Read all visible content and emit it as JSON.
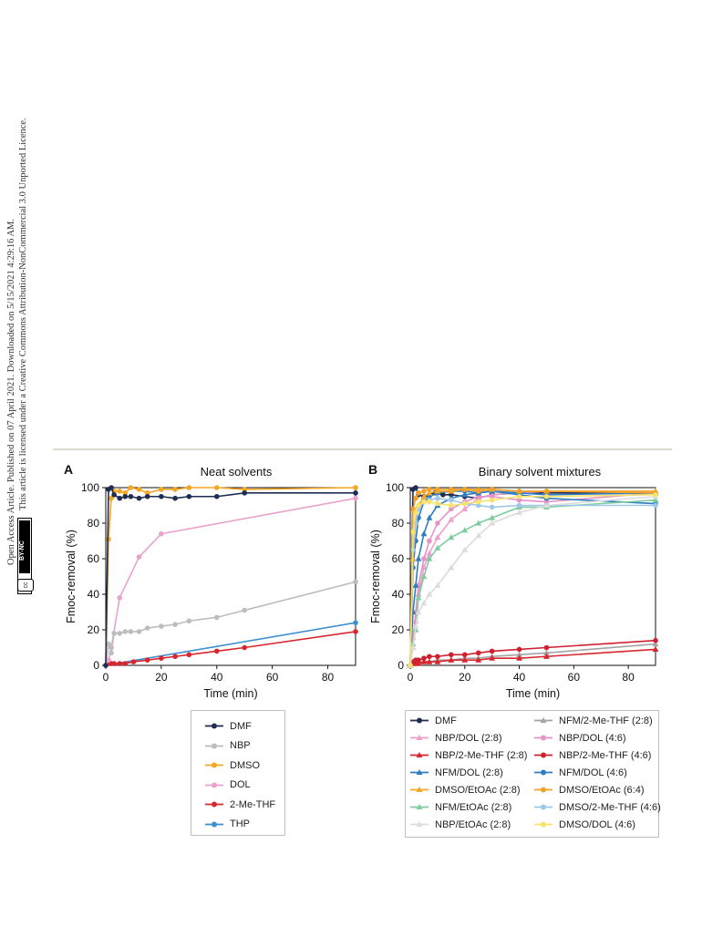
{
  "sidebar": {
    "line1": "Open Access Article. Published on 07 April 2021. Downloaded on 5/15/2021 4:29:16 AM.",
    "line2": "This article is licensed under a Creative Commons Attribution-NonCommercial 3.0 Unported Licence.",
    "badge_cc": "cc",
    "badge_text": "BY-NC"
  },
  "colors": {
    "DMF": "#1f2d52",
    "NBP": "#bdbdbd",
    "DMSO": "#f5a623",
    "DOL": "#e8a2cc",
    "2-Me-THF": "#d7262e",
    "THP": "#3f8fce",
    "NFM_2MeTHF_28": "#a3a3a3",
    "NBP_DOL_28": "#ee9fcb",
    "NBP_DOL_46": "#e493c6",
    "NBP_2MeTHF_28": "#d7262e",
    "NBP_2MeTHF_46": "#cf2030",
    "NFM_DOL_28": "#2f7dc0",
    "NFM_DOL_46": "#2f7dc0",
    "DMSO_EtOAc_28": "#f5a623",
    "DMSO_EtOAc_64": "#f2a12a",
    "NFM_EtOAc_28": "#7fcca0",
    "DMSO_2MeTHF_46": "#9ec7ea",
    "NBP_EtOAc_28": "#dcdcdc",
    "DMSO_DOL_46": "#f5e36b"
  },
  "chart_data": [
    {
      "panel": "A",
      "type": "line",
      "title": "Neat solvents",
      "xlabel": "Time (min)",
      "ylabel": "Fmoc-removal (%)",
      "xlim": [
        0,
        90
      ],
      "ylim": [
        0,
        100
      ],
      "xticks": [
        0,
        20,
        40,
        60,
        80
      ],
      "yticks": [
        0,
        20,
        40,
        60,
        80,
        100
      ],
      "grid": false,
      "legend_position": "below",
      "series": [
        {
          "name": "DMF",
          "color_key": "DMF",
          "marker": "circle",
          "x": [
            0,
            1,
            2,
            3,
            5,
            7,
            9,
            12,
            15,
            20,
            25,
            30,
            40,
            50,
            90
          ],
          "y": [
            0,
            99,
            100,
            96,
            94,
            95,
            95,
            94,
            95,
            95,
            94,
            95,
            95,
            97,
            97
          ]
        },
        {
          "name": "NBP",
          "color_key": "NBP",
          "marker": "circle",
          "x": [
            0,
            1,
            2,
            3,
            5,
            7,
            9,
            12,
            15,
            20,
            25,
            30,
            40,
            50,
            90
          ],
          "y": [
            0,
            12,
            7,
            18,
            18,
            19,
            19,
            19,
            21,
            22,
            23,
            25,
            27,
            31,
            47
          ]
        },
        {
          "name": "DMSO",
          "color_key": "DMSO",
          "marker": "circle",
          "x": [
            0,
            1,
            2,
            3,
            5,
            7,
            9,
            12,
            15,
            20,
            25,
            30,
            40,
            50,
            90
          ],
          "y": [
            0,
            71,
            94,
            98,
            98,
            97,
            100,
            99,
            97,
            99,
            99,
            100,
            100,
            99,
            100
          ]
        },
        {
          "name": "DOL",
          "color_key": "DOL",
          "marker": "circle",
          "x": [
            0,
            1,
            2,
            5,
            12,
            20,
            90
          ],
          "y": [
            0,
            3,
            10,
            38,
            61,
            74,
            94
          ]
        },
        {
          "name": "2-Me-THF",
          "color_key": "2-Me-THF",
          "marker": "circle",
          "x": [
            0,
            1,
            2,
            3,
            5,
            7,
            10,
            15,
            20,
            25,
            30,
            40,
            50,
            90
          ],
          "y": [
            0,
            1,
            1,
            1,
            1,
            1,
            2,
            3,
            4,
            5,
            6,
            8,
            10,
            19
          ]
        },
        {
          "name": "THP",
          "color_key": "THP",
          "marker": "circle",
          "x": [
            0,
            90
          ],
          "y": [
            0,
            24
          ]
        }
      ]
    },
    {
      "panel": "B",
      "type": "line",
      "title": "Binary solvent mixtures",
      "xlabel": "Time (min)",
      "ylabel": "Fmoc-removal (%)",
      "xlim": [
        0,
        90
      ],
      "ylim": [
        0,
        100
      ],
      "xticks": [
        0,
        20,
        40,
        60,
        80
      ],
      "yticks": [
        0,
        20,
        40,
        60,
        80,
        100
      ],
      "grid": false,
      "legend_position": "below",
      "series": [
        {
          "name": "DMF",
          "color_key": "DMF",
          "marker": "circle",
          "x": [
            0,
            1,
            2,
            3,
            5,
            7,
            9,
            12,
            15,
            20,
            25,
            30,
            40,
            50,
            90
          ],
          "y": [
            0,
            99,
            100,
            96,
            95,
            96,
            97,
            96,
            96,
            95,
            94,
            96,
            97,
            97,
            97
          ]
        },
        {
          "name": "NFM/2-Me-THF (2:8)",
          "color_key": "NFM_2MeTHF_28",
          "marker": "triangle",
          "x": [
            0,
            1,
            2,
            3,
            5,
            7,
            10,
            15,
            20,
            25,
            30,
            40,
            50,
            90
          ],
          "y": [
            0,
            1,
            1,
            2,
            2,
            2,
            3,
            3,
            4,
            4,
            5,
            6,
            7,
            12
          ]
        },
        {
          "name": "NBP/DOL (2:8)",
          "color_key": "NBP_DOL_28",
          "marker": "triangle",
          "x": [
            0,
            1,
            2,
            3,
            5,
            7,
            10,
            15,
            20,
            25,
            30,
            40,
            50,
            90
          ],
          "y": [
            0,
            10,
            25,
            40,
            55,
            63,
            72,
            82,
            88,
            94,
            96,
            97,
            98,
            98
          ]
        },
        {
          "name": "NBP/DOL (4:6)",
          "color_key": "NBP_DOL_46",
          "marker": "circle",
          "x": [
            0,
            1,
            2,
            3,
            5,
            7,
            10,
            15,
            20,
            25,
            30,
            40,
            50,
            90
          ],
          "y": [
            0,
            15,
            30,
            45,
            60,
            70,
            80,
            88,
            92,
            95,
            95,
            93,
            92,
            97
          ]
        },
        {
          "name": "NBP/2-Me-THF (2:8)",
          "color_key": "NBP_2MeTHF_28",
          "marker": "triangle",
          "x": [
            0,
            1,
            2,
            3,
            5,
            7,
            10,
            15,
            20,
            25,
            30,
            40,
            50,
            90
          ],
          "y": [
            0,
            1,
            1,
            1,
            2,
            2,
            2,
            3,
            3,
            3,
            4,
            4,
            5,
            9
          ]
        },
        {
          "name": "NBP/2-Me-THF (4:6)",
          "color_key": "NBP_2MeTHF_46",
          "marker": "circle",
          "x": [
            0,
            1,
            2,
            3,
            5,
            7,
            10,
            15,
            20,
            25,
            30,
            40,
            50,
            90
          ],
          "y": [
            0,
            2,
            3,
            3,
            4,
            5,
            5,
            6,
            6,
            7,
            8,
            9,
            10,
            14
          ]
        },
        {
          "name": "NFM/DOL (2:8)",
          "color_key": "NFM_DOL_28",
          "marker": "triangle",
          "x": [
            0,
            1,
            2,
            3,
            5,
            7,
            10,
            15,
            20,
            25,
            30,
            40,
            50,
            90
          ],
          "y": [
            0,
            30,
            45,
            60,
            74,
            83,
            90,
            94,
            96,
            97,
            98,
            97,
            96,
            97
          ]
        },
        {
          "name": "NFM/DOL (4:6)",
          "color_key": "NFM_DOL_46",
          "marker": "circle",
          "x": [
            0,
            1,
            2,
            3,
            5,
            7,
            10,
            15,
            20,
            25,
            30,
            40,
            50,
            90
          ],
          "y": [
            0,
            55,
            70,
            83,
            92,
            95,
            97,
            98,
            98,
            97,
            98,
            96,
            94,
            91
          ]
        },
        {
          "name": "DMSO/EtOAc (2:8)",
          "color_key": "DMSO_EtOAc_28",
          "marker": "triangle",
          "x": [
            0,
            1,
            2,
            3,
            5,
            7,
            10,
            15,
            20,
            25,
            30,
            40,
            50,
            90
          ],
          "y": [
            0,
            60,
            80,
            90,
            95,
            97,
            98,
            98,
            99,
            99,
            99,
            98,
            98,
            98
          ]
        },
        {
          "name": "DMSO/EtOAc (6:4)",
          "color_key": "DMSO_EtOAc_64",
          "marker": "circle",
          "x": [
            0,
            1,
            2,
            3,
            5,
            7,
            10,
            15,
            20,
            25,
            30,
            40,
            50,
            90
          ],
          "y": [
            0,
            88,
            94,
            97,
            98,
            99,
            99,
            99,
            99,
            98,
            99,
            98,
            98,
            97
          ]
        },
        {
          "name": "NFM/EtOAc (2:8)",
          "color_key": "NFM_EtOAc_28",
          "marker": "triangle",
          "x": [
            0,
            1,
            2,
            3,
            5,
            7,
            10,
            15,
            20,
            25,
            30,
            40,
            50,
            90
          ],
          "y": [
            0,
            12,
            20,
            38,
            50,
            60,
            66,
            72,
            76,
            80,
            83,
            89,
            89,
            93
          ]
        },
        {
          "name": "DMSO/2-Me-THF (4:6)",
          "color_key": "DMSO_2MeTHF_46",
          "marker": "circle",
          "x": [
            0,
            1,
            2,
            3,
            5,
            7,
            10,
            15,
            20,
            25,
            30,
            40,
            50,
            90
          ],
          "y": [
            0,
            65,
            80,
            88,
            92,
            93,
            94,
            93,
            91,
            90,
            89,
            90,
            90,
            90
          ]
        },
        {
          "name": "NBP/EtOAc (2:8)",
          "color_key": "NBP_EtOAc_28",
          "marker": "triangle",
          "x": [
            0,
            1,
            2,
            3,
            5,
            7,
            10,
            15,
            20,
            25,
            30,
            40,
            50,
            90
          ],
          "y": [
            0,
            10,
            22,
            30,
            35,
            40,
            45,
            55,
            65,
            73,
            80,
            86,
            90,
            95
          ]
        },
        {
          "name": "DMSO/DOL (4:6)",
          "color_key": "DMSO_DOL_46",
          "marker": "circle",
          "x": [
            0,
            1,
            2,
            3,
            5,
            7,
            10,
            15,
            20,
            25,
            30,
            40,
            50,
            90
          ],
          "y": [
            0,
            75,
            86,
            90,
            92,
            92,
            91,
            90,
            91,
            92,
            93,
            95,
            95,
            96
          ]
        }
      ]
    }
  ],
  "legend_a": [
    "DMF",
    "NBP",
    "DMSO",
    "DOL",
    "2-Me-THF",
    "THP"
  ],
  "legend_b_left": [
    "DMF",
    "NBP/DOL (2:8)",
    "NBP/2-Me-THF (2:8)",
    "NFM/DOL (2:8)",
    "DMSO/EtOAc (2:8)",
    "NFM/EtOAc (2:8)",
    "NBP/EtOAc (2:8)"
  ],
  "legend_b_right": [
    "NFM/2-Me-THF (2:8)",
    "NBP/DOL (4:6)",
    "NBP/2-Me-THF (4:6)",
    "NFM/DOL (4:6)",
    "DMSO/EtOAc (6:4)",
    "DMSO/2-Me-THF (4:6)",
    "DMSO/DOL (4:6)"
  ]
}
